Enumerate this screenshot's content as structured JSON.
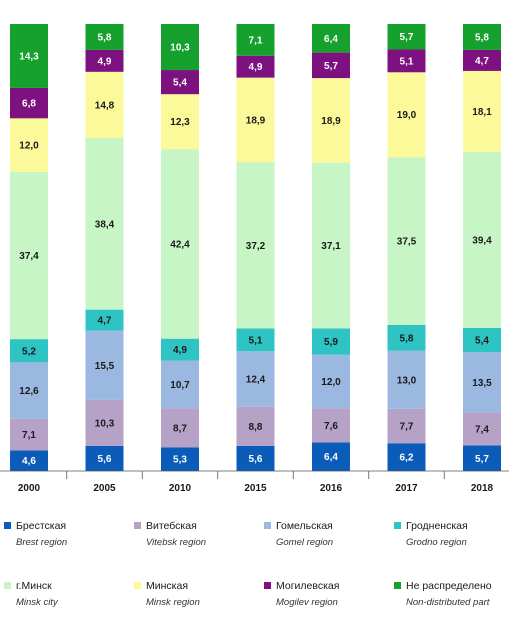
{
  "chart_data": {
    "type": "bar",
    "stacked": true,
    "percent": true,
    "categories": [
      "2000",
      "2005",
      "2010",
      "2015",
      "2016",
      "2017",
      "2018"
    ],
    "series": [
      {
        "name": "Брестская",
        "name_en": "Brest region",
        "color": "#0a5cb8",
        "values": [
          4.6,
          5.6,
          5.3,
          5.6,
          6.4,
          6.2,
          5.7
        ]
      },
      {
        "name": "Витебская",
        "name_en": "Vitebsk region",
        "color": "#b6a2c6",
        "values": [
          7.1,
          10.3,
          8.7,
          8.8,
          7.6,
          7.7,
          7.4
        ]
      },
      {
        "name": "Гомельская",
        "name_en": "Gomel region",
        "color": "#9bb8e0",
        "values": [
          12.6,
          15.5,
          10.7,
          12.4,
          12.0,
          13.0,
          13.5
        ]
      },
      {
        "name": "Гродненская",
        "name_en": "Grodno region",
        "color": "#2ec4c4",
        "values": [
          5.2,
          4.7,
          4.9,
          5.1,
          5.9,
          5.8,
          5.4
        ]
      },
      {
        "name": "г.Минск",
        "name_en": "Minsk city",
        "color": "#c8f5c6",
        "values": [
          37.4,
          38.4,
          42.4,
          37.2,
          37.1,
          37.5,
          39.4
        ]
      },
      {
        "name": "Минская",
        "name_en": "Minsk region",
        "color": "#fbf99a",
        "values": [
          12.0,
          14.8,
          12.3,
          18.9,
          18.9,
          19.0,
          18.1
        ]
      },
      {
        "name": "Могилевская",
        "name_en": "Mogilev region",
        "color": "#7d1180",
        "values": [
          6.8,
          4.9,
          5.4,
          4.9,
          5.7,
          5.1,
          4.7
        ]
      },
      {
        "name": "Не распределено",
        "name_en": "Non-distributed part",
        "color": "#16a02e",
        "values": [
          14.3,
          5.8,
          10.3,
          7.1,
          6.4,
          5.7,
          5.8
        ]
      }
    ],
    "ylim": [
      0,
      100
    ],
    "grid": false,
    "legend_position": "bottom"
  }
}
